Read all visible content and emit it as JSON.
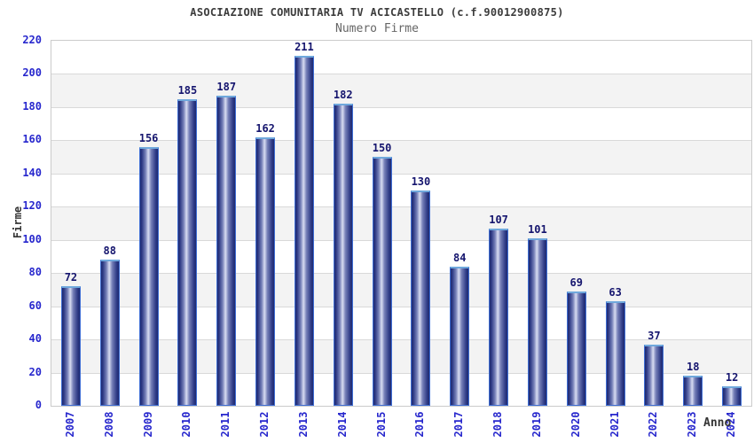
{
  "header": {
    "title": "ASOCIAZIONE COMUNITARIA TV ACICASTELLO (c.f.90012900875)",
    "subtitle": "Numero Firme"
  },
  "chart_data": {
    "type": "bar",
    "title": "ASOCIAZIONE COMUNITARIA TV ACICASTELLO (c.f.90012900875)",
    "subtitle": "Numero Firme",
    "xlabel": "Anno",
    "ylabel": "Firme",
    "categories": [
      "2007",
      "2008",
      "2009",
      "2010",
      "2011",
      "2012",
      "2013",
      "2014",
      "2015",
      "2016",
      "2017",
      "2018",
      "2019",
      "2020",
      "2021",
      "2022",
      "2023",
      "2024"
    ],
    "values": [
      72,
      88,
      156,
      185,
      187,
      162,
      211,
      182,
      150,
      130,
      84,
      107,
      101,
      69,
      63,
      37,
      18,
      12
    ],
    "ylim": [
      0,
      220
    ],
    "ytick_step": 20,
    "grid": true,
    "alternating_bands": true,
    "legend_position": "none",
    "bar_value_labels_shown": true,
    "x_tick_rotation_deg": 90
  },
  "colors": {
    "background": "#ffffff",
    "title": "#3c3c3c",
    "subtitle": "#666666",
    "tick": "#2727cd",
    "value-label": "#15156e",
    "axis-title": "#333333",
    "bar-dark": "#1f2a70",
    "bar-dark2": "#2e3a85",
    "bar-mid": "#7680b8",
    "bar-light": "#d8dcf2",
    "bar-border": "#3f6ed4",
    "bar-cap": "#6fa8dc",
    "band": "#f3f3f3",
    "grid": "#d9d9d9",
    "frame": "#cbcbcb"
  }
}
